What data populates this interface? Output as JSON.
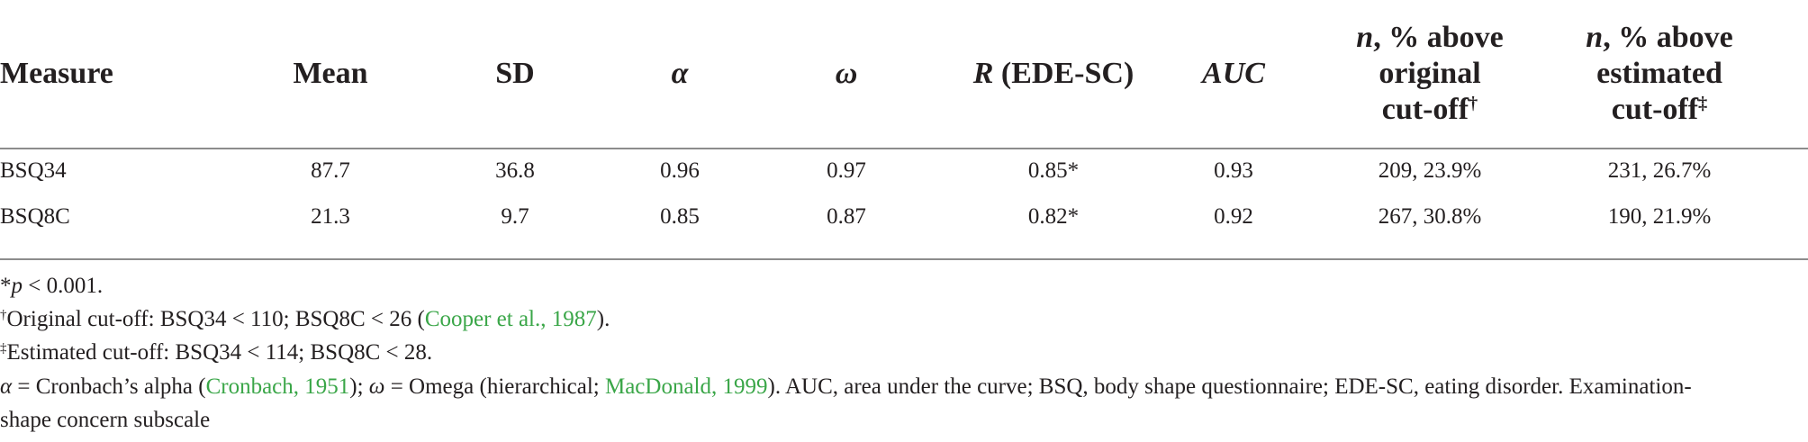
{
  "table": {
    "headers": {
      "measure": "Measure",
      "mean": "Mean",
      "sd": "SD",
      "alpha": "α",
      "omega": "ω",
      "r_italic": "R",
      "r_rest": "(EDE-SC)",
      "auc": "AUC",
      "orig_n": "n",
      "orig_line1_rest": ", % above",
      "orig_line2": "original",
      "orig_line3": "cut-off",
      "orig_mark": "†",
      "est_n": "n",
      "est_line1_rest": ", % above",
      "est_line2": "estimated",
      "est_line3": "cut-off",
      "est_mark": "‡"
    },
    "rows": [
      {
        "measure": "BSQ34",
        "mean": "87.7",
        "sd": "36.8",
        "alpha": "0.96",
        "omega": "0.97",
        "r": "0.85*",
        "auc": "0.93",
        "above_original": "209, 23.9%",
        "above_estimated": "231, 26.7%"
      },
      {
        "measure": "BSQ8C",
        "mean": "21.3",
        "sd": "9.7",
        "alpha": "0.85",
        "omega": "0.87",
        "r": "0.82*",
        "auc": "0.92",
        "above_original": "267, 30.8%",
        "above_estimated": "190, 21.9%"
      }
    ]
  },
  "footnotes": {
    "note1": {
      "mark": "*",
      "p": "p",
      "rest": " < 0.001."
    },
    "note2": {
      "mark": "†",
      "text": "Original cut-off: BSQ34 < 110; BSQ8C < 26 (",
      "link": "Cooper et al., 1987",
      "end": ")."
    },
    "note3": {
      "mark": "‡",
      "text": "Estimated cut-off: BSQ34 < 114; BSQ8C < 28."
    },
    "note4": {
      "alpha": "α",
      "part1": " = Cronbach’s alpha (",
      "link1": "Cronbach, 1951",
      "part2": "); ",
      "omega": "ω",
      "part3": " = Omega (hierarchical; ",
      "link2": "MacDonald, 1999",
      "part4": "). AUC, area under the curve; BSQ, body shape questionnaire; EDE-SC, eating disorder. Examination-",
      "line2": "shape concern subscale"
    }
  },
  "colors": {
    "text": "#231f20",
    "link": "#3aa648",
    "rule": "#8c8c8c"
  }
}
